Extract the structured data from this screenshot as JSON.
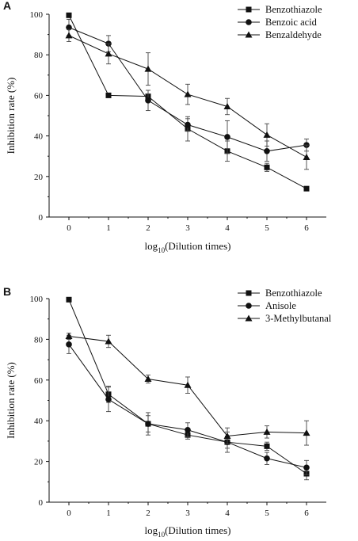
{
  "chart_data": [
    {
      "panel_label": "A",
      "type": "line",
      "title": "",
      "xlabel_base": "log",
      "xlabel_sub": "10",
      "xlabel_rest": "(Dilution times)",
      "ylabel": "Inhibition rate (%)",
      "xlim": [
        -0.5,
        6.5
      ],
      "ylim": [
        0,
        100
      ],
      "xticks": [
        0,
        1,
        2,
        3,
        4,
        5,
        6
      ],
      "yticks": [
        0,
        20,
        40,
        60,
        80,
        100
      ],
      "grid": false,
      "legend_position": "top-right",
      "x": [
        0,
        1,
        2,
        3,
        4,
        5,
        6
      ],
      "series": [
        {
          "name": "Benzothiazole",
          "marker": "square",
          "values": [
            99.5,
            60,
            59.5,
            43.5,
            32.5,
            24.5,
            14
          ],
          "errors": [
            0,
            0,
            0,
            6,
            5,
            2,
            1
          ]
        },
        {
          "name": "Benzoic acid",
          "marker": "circle",
          "values": [
            93.5,
            85.5,
            57.5,
            45.5,
            39.5,
            32.5,
            35.5
          ],
          "errors": [
            4,
            4,
            5,
            3,
            8,
            5,
            3
          ]
        },
        {
          "name": "Benzaldehyde",
          "marker": "triangle",
          "values": [
            89.5,
            80.5,
            73,
            60.5,
            54.5,
            40.5,
            29.5
          ],
          "errors": [
            3,
            5,
            8,
            5,
            4,
            5.5,
            6
          ]
        }
      ]
    },
    {
      "panel_label": "B",
      "type": "line",
      "title": "",
      "xlabel_base": "log",
      "xlabel_sub": "10",
      "xlabel_rest": "(Dilution times)",
      "ylabel": "Inhibition rate (%)",
      "xlim": [
        -0.5,
        6.5
      ],
      "ylim": [
        0,
        100
      ],
      "xticks": [
        0,
        1,
        2,
        3,
        4,
        5,
        6
      ],
      "yticks": [
        0,
        20,
        40,
        60,
        80,
        100
      ],
      "grid": false,
      "legend_position": "top-right",
      "x": [
        0,
        1,
        2,
        3,
        4,
        5,
        6
      ],
      "series": [
        {
          "name": "Benzothiazole",
          "marker": "square",
          "values": [
            99.5,
            53,
            38.5,
            33,
            29.5,
            27.5,
            14
          ],
          "errors": [
            0,
            4,
            4,
            2,
            3,
            2,
            3
          ]
        },
        {
          "name": "Anisole",
          "marker": "circle",
          "values": [
            77.5,
            50.5,
            38.5,
            35.5,
            29.5,
            21.5,
            17
          ],
          "errors": [
            4.5,
            6,
            5.5,
            3.5,
            5,
            3,
            3.5
          ]
        },
        {
          "name": "3-Methylbutanal",
          "marker": "triangle",
          "values": [
            81.5,
            79,
            60.5,
            57.5,
            32.5,
            34.5,
            34
          ],
          "errors": [
            1.5,
            3,
            2,
            4,
            4,
            3,
            6
          ]
        }
      ]
    }
  ]
}
